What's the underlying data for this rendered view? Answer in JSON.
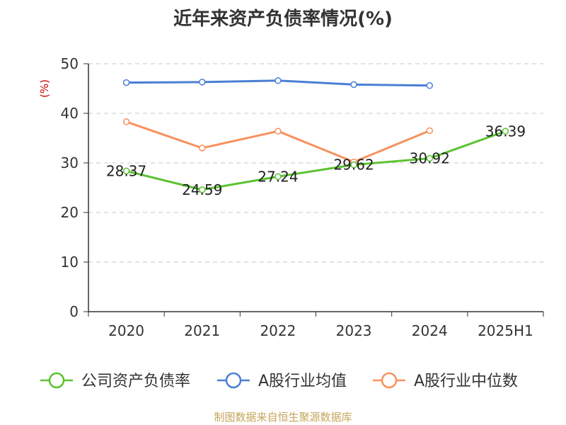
{
  "chart_data": {
    "type": "line",
    "title": "近年来资产负债率情况(%)",
    "ylabel": "(%)",
    "xlabel": "",
    "categories": [
      "2020",
      "2021",
      "2022",
      "2023",
      "2024",
      "2025H1"
    ],
    "ylim": [
      0,
      50
    ],
    "yticks": [
      0,
      10,
      20,
      30,
      40,
      50
    ],
    "grid": true,
    "legend_position": "bottom",
    "series": [
      {
        "name": "公司资产负债率",
        "color": "#5bc232",
        "values": [
          28.37,
          24.59,
          27.24,
          29.62,
          30.92,
          36.39
        ],
        "labels": [
          "28.37",
          "24.59",
          "27.24",
          "29.62",
          "30.92",
          "36.39"
        ]
      },
      {
        "name": "A股行业均值",
        "color": "#4a7fd4",
        "values": [
          46.2,
          46.3,
          46.6,
          45.8,
          45.6,
          null
        ]
      },
      {
        "name": "A股行业中位数",
        "color": "#f7925e",
        "values": [
          38.3,
          33.0,
          36.4,
          30.2,
          36.5,
          null
        ]
      }
    ]
  },
  "source": "制图数据来自恒生聚源数据库"
}
